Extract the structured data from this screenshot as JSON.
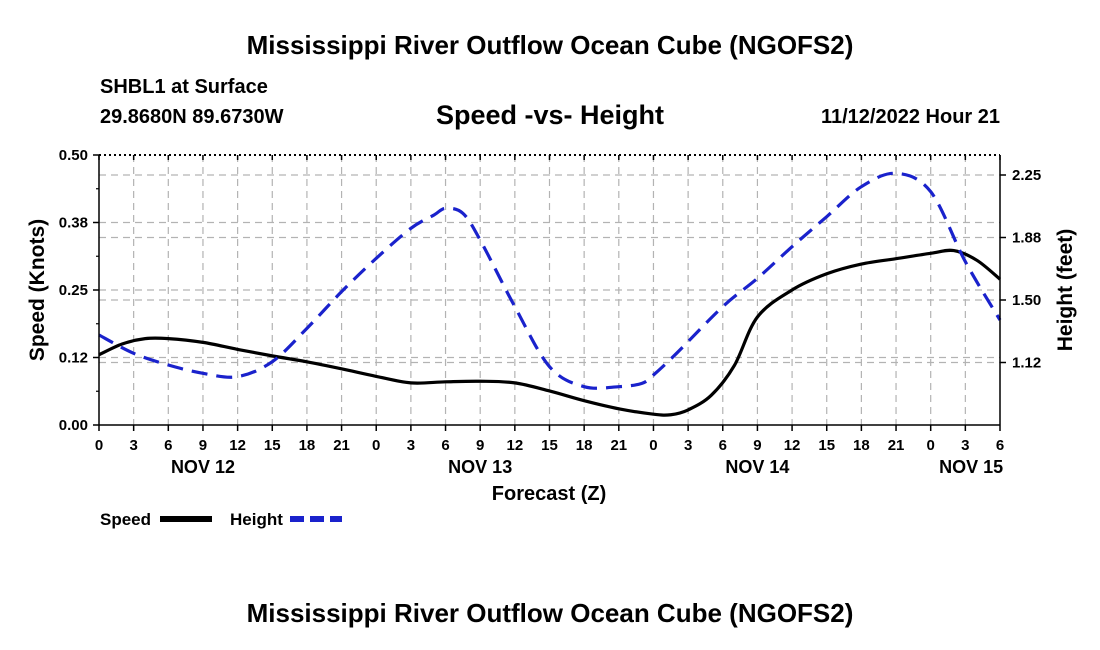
{
  "header": {
    "title": "Mississippi River Outflow Ocean Cube (NGOFS2)",
    "station": "SHBL1 at Surface",
    "coords": "29.8680N  89.6730W",
    "datetime": "11/12/2022 Hour 21",
    "footer_title": "Mississippi River Outflow Ocean Cube (NGOFS2)"
  },
  "chart_data": {
    "type": "line",
    "title": "Speed -vs- Height",
    "xlabel": "Forecast (Z)",
    "ylabel_left": "Speed (Knots)",
    "ylabel_right": "Height (feet)",
    "x_unit": "forecast hour from Nov 12 00Z",
    "xlim": [
      0,
      78
    ],
    "ylim_left": [
      0,
      0.5
    ],
    "ylim_right": [
      0.75,
      2.37
    ],
    "grid": true,
    "x_tick_labels": [
      "0",
      "3",
      "6",
      "9",
      "12",
      "15",
      "18",
      "21",
      "0",
      "3",
      "6",
      "9",
      "12",
      "15",
      "18",
      "21",
      "0",
      "3",
      "6",
      "9",
      "12",
      "15",
      "18",
      "21",
      "0",
      "3",
      "6"
    ],
    "day_labels": [
      {
        "label": "NOV 12",
        "hour": 9
      },
      {
        "label": "NOV 13",
        "hour": 33
      },
      {
        "label": "NOV 14",
        "hour": 57
      },
      {
        "label": "NOV 15",
        "hour": 75.5
      }
    ],
    "y_left_ticks": [
      {
        "value": 0.0,
        "label": "0.00"
      },
      {
        "value": 0.125,
        "label": "0.12"
      },
      {
        "value": 0.25,
        "label": "0.25"
      },
      {
        "value": 0.375,
        "label": "0.38"
      },
      {
        "value": 0.5,
        "label": "0.50"
      }
    ],
    "y_right_ticks": [
      {
        "value": 1.125,
        "label": "1.12"
      },
      {
        "value": 1.5,
        "label": "1.50"
      },
      {
        "value": 1.875,
        "label": "1.88"
      },
      {
        "value": 2.25,
        "label": "2.25"
      }
    ],
    "series": [
      {
        "name": "Speed",
        "axis": "left",
        "color": "#000000",
        "dash": "solid",
        "x": [
          0,
          2,
          4,
          6,
          9,
          12,
          15,
          18,
          21,
          24,
          27,
          30,
          33,
          36,
          39,
          42,
          45,
          48,
          49.5,
          51,
          53,
          55,
          57,
          60,
          63,
          66,
          69,
          72,
          74,
          76,
          78
        ],
        "values": [
          0.13,
          0.15,
          0.16,
          0.16,
          0.153,
          0.14,
          0.128,
          0.117,
          0.104,
          0.09,
          0.078,
          0.08,
          0.081,
          0.078,
          0.063,
          0.045,
          0.03,
          0.02,
          0.019,
          0.028,
          0.055,
          0.11,
          0.2,
          0.25,
          0.28,
          0.298,
          0.308,
          0.318,
          0.323,
          0.305,
          0.27
        ]
      },
      {
        "name": "Height",
        "axis": "right",
        "color": "#1a22cc",
        "dash": "dashed",
        "x": [
          0,
          3,
          6,
          9,
          12,
          15,
          18,
          21,
          24,
          27,
          29,
          30,
          31.5,
          33,
          36,
          39,
          42,
          45,
          47,
          48,
          50,
          54,
          57,
          60,
          63,
          66,
          69,
          72,
          75,
          78
        ],
        "values": [
          1.29,
          1.18,
          1.11,
          1.06,
          1.04,
          1.13,
          1.33,
          1.55,
          1.75,
          1.93,
          2.01,
          2.05,
          2.02,
          1.86,
          1.46,
          1.1,
          0.98,
          0.98,
          1.0,
          1.05,
          1.18,
          1.46,
          1.63,
          1.82,
          2.0,
          2.18,
          2.26,
          2.15,
          1.73,
          1.38
        ]
      }
    ],
    "legend": [
      {
        "label": "Speed",
        "style": "solid",
        "color": "#000000"
      },
      {
        "label": "Height",
        "style": "dashed",
        "color": "#1a22cc"
      }
    ],
    "legend_position": "bottom-left"
  }
}
